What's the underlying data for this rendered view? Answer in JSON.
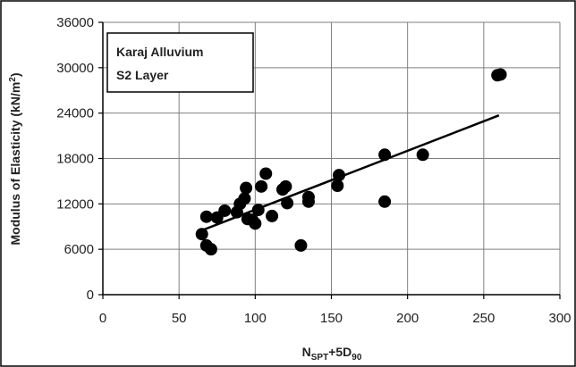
{
  "chart_data": {
    "type": "scatter",
    "xlabel": {
      "base": "N",
      "sub1": "SPT",
      "mid": "+5D",
      "sub2": "90"
    },
    "ylabel": {
      "text": "Modulus of Elasticity (kN/m",
      "sup": "2",
      "end": ")"
    },
    "xlim": [
      0,
      300
    ],
    "ylim": [
      0,
      36000
    ],
    "xticks": [
      0,
      50,
      100,
      150,
      200,
      250,
      300
    ],
    "yticks": [
      0,
      6000,
      12000,
      18000,
      24000,
      30000,
      36000
    ],
    "xtick_labels": [
      "0",
      "50",
      "100",
      "150",
      "200",
      "250",
      "300"
    ],
    "ytick_labels": [
      "0",
      "6000",
      "12000",
      "18000",
      "24000",
      "30000",
      "36000"
    ],
    "grid": true,
    "annotation": [
      "Karaj Alluvium",
      "S2 Layer"
    ],
    "series": [
      {
        "points": [
          [
            65,
            8000
          ],
          [
            68,
            10300
          ],
          [
            68,
            6500
          ],
          [
            71,
            6000
          ],
          [
            75,
            10200
          ],
          [
            80,
            11100
          ],
          [
            88,
            10900
          ],
          [
            90,
            12000
          ],
          [
            93,
            12700
          ],
          [
            94,
            14100
          ],
          [
            95,
            10000
          ],
          [
            98,
            9900
          ],
          [
            100,
            9400
          ],
          [
            102,
            11200
          ],
          [
            104,
            14300
          ],
          [
            107,
            16000
          ],
          [
            111,
            10400
          ],
          [
            118,
            13900
          ],
          [
            120,
            14300
          ],
          [
            121,
            12100
          ],
          [
            130,
            6500
          ],
          [
            135,
            12900
          ],
          [
            135,
            12300
          ],
          [
            154,
            14400
          ],
          [
            155,
            15800
          ],
          [
            185,
            18500
          ],
          [
            185,
            12300
          ],
          [
            210,
            18500
          ],
          [
            259,
            29000
          ],
          [
            261,
            29100
          ]
        ]
      }
    ],
    "trendline": {
      "x": [
        65,
        260
      ],
      "y": [
        8500,
        23700
      ]
    }
  }
}
